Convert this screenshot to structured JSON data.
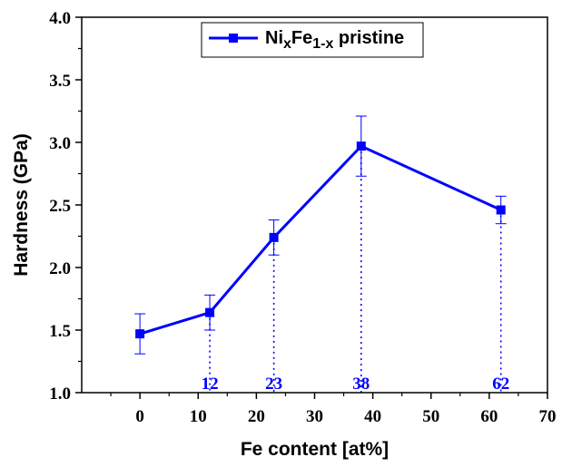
{
  "chart_data": {
    "type": "line",
    "xlabel": "Fe content [at%]",
    "ylabel": "Hardness (GPa)",
    "xlim": [
      -10,
      70
    ],
    "ylim": [
      1.0,
      4.0
    ],
    "x_ticks": [
      0,
      10,
      20,
      30,
      40,
      50,
      60,
      70
    ],
    "y_ticks": [
      1.0,
      1.5,
      2.0,
      2.5,
      3.0,
      3.5,
      4.0
    ],
    "y_tick_labels": [
      "1.0",
      "1.5",
      "2.0",
      "2.5",
      "3.0",
      "3.5",
      "4.0"
    ],
    "legend_position": "top-right",
    "grid": false,
    "series": [
      {
        "legend": {
          "base": "Ni",
          "sub1": "x",
          "mid": "Fe",
          "sub2": "1-x",
          "tail": " pristine"
        },
        "color": "#0000ff",
        "marker": "square",
        "x": [
          0,
          12,
          23,
          38,
          62
        ],
        "y": [
          1.47,
          1.64,
          2.24,
          2.97,
          2.46
        ],
        "error": [
          0.16,
          0.14,
          0.14,
          0.24,
          0.11
        ]
      }
    ],
    "annotations": [
      {
        "x": 12,
        "label": "12"
      },
      {
        "x": 23,
        "label": "23"
      },
      {
        "x": 38,
        "label": "38"
      },
      {
        "x": 62,
        "label": "62"
      }
    ]
  }
}
